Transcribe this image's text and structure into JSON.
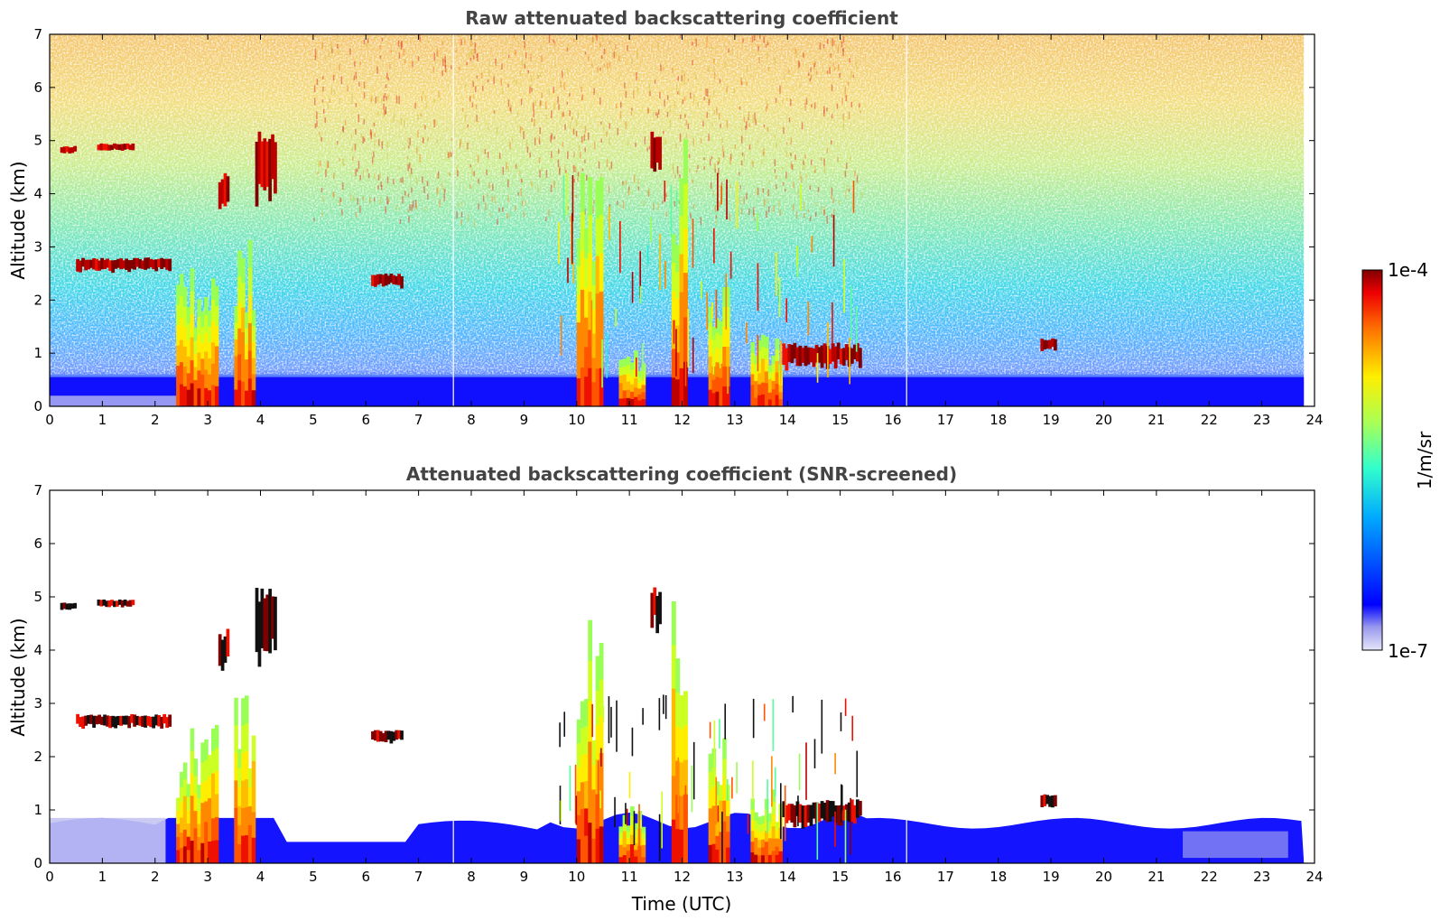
{
  "chart_data": [
    {
      "type": "heatmap",
      "title": "Raw attenuated backscattering coefficient",
      "xlabel": "",
      "ylabel": "Altitude (km)",
      "xlim": [
        0,
        24
      ],
      "ylim": [
        0,
        7
      ],
      "xticks": [
        "0",
        "1",
        "2",
        "3",
        "4",
        "5",
        "6",
        "7",
        "8",
        "9",
        "10",
        "11",
        "12",
        "13",
        "14",
        "15",
        "16",
        "17",
        "18",
        "19",
        "20",
        "21",
        "22",
        "23",
        "24"
      ],
      "yticks": [
        "0",
        "1",
        "2",
        "3",
        "4",
        "5",
        "6",
        "7"
      ],
      "x_data_end": 23.8,
      "screened": false,
      "features": [
        {
          "kind": "cloud_layer",
          "x": [
            0.2,
            0.5
          ],
          "y": [
            4.8,
            4.9
          ]
        },
        {
          "kind": "cloud_layer",
          "x": [
            0.9,
            1.6
          ],
          "y": [
            4.85,
            4.95
          ]
        },
        {
          "kind": "cloud_layer",
          "x": [
            0.5,
            2.3
          ],
          "y": [
            2.6,
            2.8
          ]
        },
        {
          "kind": "precip_shaft",
          "x": [
            2.4,
            3.2
          ],
          "y": [
            0,
            2.6
          ]
        },
        {
          "kind": "precip_shaft",
          "x": [
            3.5,
            3.9
          ],
          "y": [
            0,
            3.2
          ]
        },
        {
          "kind": "cloud_layer",
          "x": [
            3.2,
            3.4
          ],
          "y": [
            3.7,
            4.4
          ]
        },
        {
          "kind": "cloud_layer",
          "x": [
            3.9,
            4.3
          ],
          "y": [
            4.0,
            5.2
          ]
        },
        {
          "kind": "cloud_layer",
          "x": [
            6.1,
            6.7
          ],
          "y": [
            2.3,
            2.5
          ]
        },
        {
          "kind": "precip_shaft",
          "x": [
            10.0,
            10.5
          ],
          "y": [
            0,
            4.6
          ]
        },
        {
          "kind": "precip_shaft",
          "x": [
            10.8,
            11.3
          ],
          "y": [
            0,
            1.2
          ]
        },
        {
          "kind": "cloud_layer",
          "x": [
            11.4,
            11.6
          ],
          "y": [
            4.5,
            5.2
          ]
        },
        {
          "kind": "precip_shaft",
          "x": [
            11.8,
            12.1
          ],
          "y": [
            0,
            5.5
          ]
        },
        {
          "kind": "precip_shaft",
          "x": [
            12.5,
            12.9
          ],
          "y": [
            0,
            2.5
          ]
        },
        {
          "kind": "precip_shaft",
          "x": [
            13.3,
            13.9
          ],
          "y": [
            0,
            1.4
          ]
        },
        {
          "kind": "cloud_layer",
          "x": [
            13.9,
            15.4
          ],
          "y": [
            0.8,
            1.2
          ]
        },
        {
          "kind": "cloud_layer",
          "x": [
            18.8,
            19.1
          ],
          "y": [
            1.1,
            1.3
          ]
        }
      ]
    },
    {
      "type": "heatmap",
      "title": "Attenuated backscattering coefficient (SNR-screened)",
      "xlabel": "Time (UTC)",
      "ylabel": "Altitude (km)",
      "xlim": [
        0,
        24
      ],
      "ylim": [
        0,
        7
      ],
      "xticks": [
        "0",
        "1",
        "2",
        "3",
        "4",
        "5",
        "6",
        "7",
        "8",
        "9",
        "10",
        "11",
        "12",
        "13",
        "14",
        "15",
        "16",
        "17",
        "18",
        "19",
        "20",
        "21",
        "22",
        "23",
        "24"
      ],
      "yticks": [
        "0",
        "1",
        "2",
        "3",
        "4",
        "5",
        "6",
        "7"
      ],
      "x_data_end": 23.8,
      "screened": true
    }
  ],
  "colorbar": {
    "label": "1/m/sr",
    "max_label": "1e-4",
    "min_label": "1e-7",
    "scale": "log",
    "colormap": "jet",
    "colors": [
      "#e6e6fa",
      "#0000ff",
      "#00aaff",
      "#33ffcc",
      "#aaff55",
      "#ffee00",
      "#ff7700",
      "#ee0000",
      "#800000"
    ]
  }
}
